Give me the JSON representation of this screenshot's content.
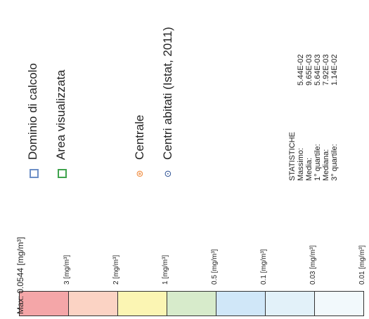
{
  "legend": {
    "dominio": "Dominio di calcolo",
    "area": "Area visualizzata",
    "centrale": "Centrale",
    "centri": "Centri abitati (Istat, 2011)"
  },
  "icons": {
    "dominio": "blue-square-outline-icon",
    "area": "green-square-outline-icon",
    "centrale": "orange-power-plant-icon",
    "centri": "blue-dot-circle-icon"
  },
  "colors": {
    "dominio": "#6d8fc7",
    "area": "#3fa34d",
    "centrale": "#f08a3c",
    "centri": "#2b4f93"
  },
  "stats": {
    "title": "STATISTICHE",
    "rows": [
      {
        "label": "Massimo:",
        "value": "5.44E-02"
      },
      {
        "label": "Media:",
        "value": "9.65E-03"
      },
      {
        "label": "1° quartile:",
        "value": "5.64E-03"
      },
      {
        "label": "Mediana:",
        "value": "7.92E-03"
      },
      {
        "label": "3° quartile:",
        "value": "1.14E-02"
      }
    ]
  },
  "scale": {
    "max_label": "Max: 0.0544 [mg/m³]",
    "classes": [
      {
        "color": "#f4a6a8",
        "label": ""
      },
      {
        "color": "#fbd3c4",
        "label": "3 [mg/m³]"
      },
      {
        "color": "#fbf5b3",
        "label": "2 [mg/m³]"
      },
      {
        "color": "#d7ebcb",
        "label": "1 [mg/m³]"
      },
      {
        "color": "#d0e7f8",
        "label": "0.5 [mg/m³]"
      },
      {
        "color": "#e2f1f9",
        "label": "0.1 [mg/m³]"
      },
      {
        "color": "#f2f9fc",
        "label": "0.03 [mg/m³]"
      }
    ],
    "end_label": "0.01 [mg/m³]"
  }
}
